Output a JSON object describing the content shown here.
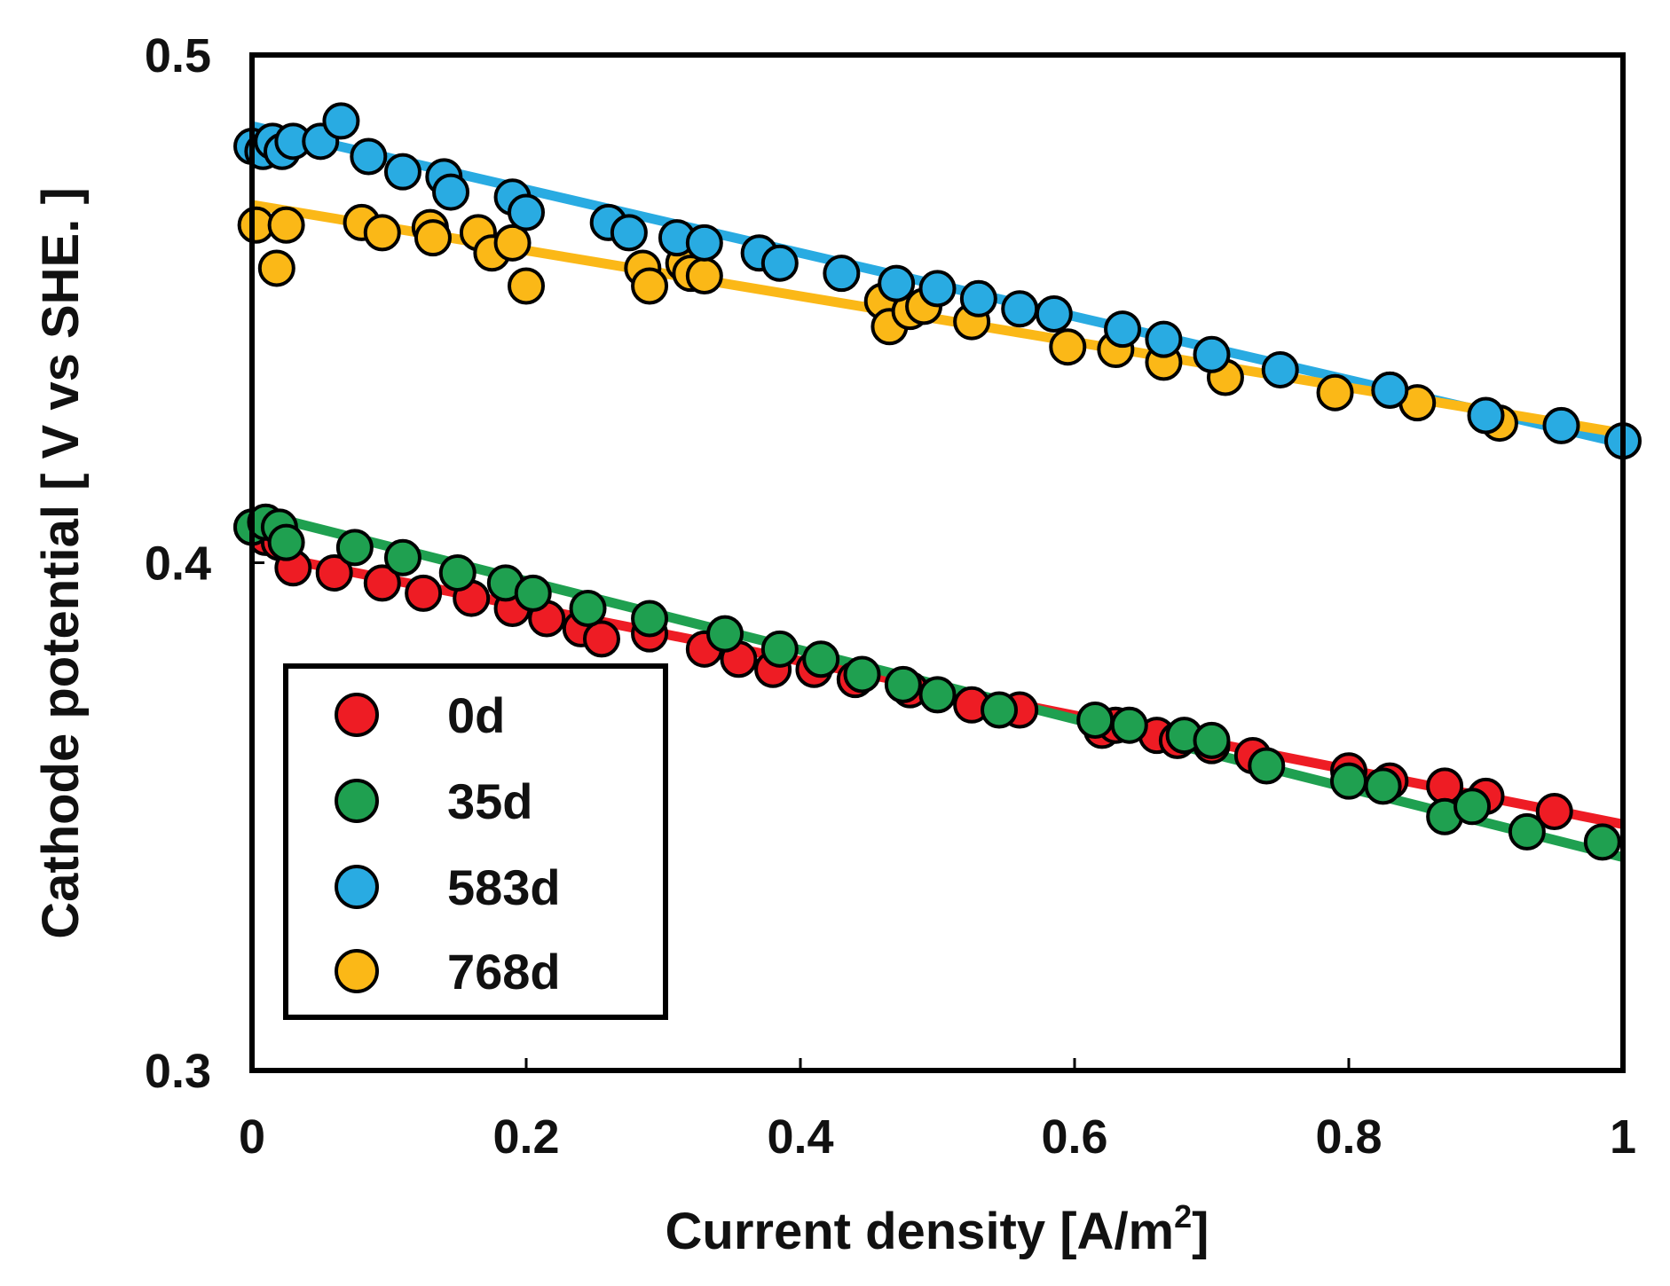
{
  "chart_data": {
    "type": "scatter",
    "xlabel": "Current density [A/m",
    "xlabel_superscript": "2",
    "xlabel_suffix": "]",
    "ylabel": "Cathode potential [ V vs SHE. ]",
    "xlim": [
      0,
      1
    ],
    "ylim": [
      0.3,
      0.5
    ],
    "x_ticks": [
      0,
      0.2,
      0.4,
      0.6,
      0.8,
      1
    ],
    "x_tick_labels": [
      "0",
      "0.2",
      "0.4",
      "0.6",
      "0.8",
      "1"
    ],
    "y_ticks": [
      0.3,
      0.4,
      0.5
    ],
    "y_tick_labels": [
      "0.3",
      "0.4",
      "0.5"
    ],
    "grid": false,
    "legend_position": "bottom-left",
    "series": [
      {
        "name": "0d",
        "color": "#ee1c24",
        "trend": [
          [
            0.02,
            0.401
          ],
          [
            1.0,
            0.3485
          ]
        ],
        "x": [
          0.0,
          0.01,
          0.02,
          0.03,
          0.06,
          0.095,
          0.125,
          0.16,
          0.19,
          0.215,
          0.24,
          0.255,
          0.29,
          0.33,
          0.355,
          0.38,
          0.41,
          0.44,
          0.48,
          0.525,
          0.56,
          0.62,
          0.63,
          0.66,
          0.675,
          0.7,
          0.73,
          0.8,
          0.83,
          0.87,
          0.9,
          0.95
        ],
        "y": [
          0.407,
          0.405,
          0.404,
          0.399,
          0.398,
          0.396,
          0.394,
          0.393,
          0.391,
          0.389,
          0.387,
          0.385,
          0.386,
          0.383,
          0.381,
          0.379,
          0.379,
          0.377,
          0.375,
          0.372,
          0.371,
          0.367,
          0.368,
          0.366,
          0.365,
          0.364,
          0.362,
          0.359,
          0.357,
          0.356,
          0.354,
          0.351
        ]
      },
      {
        "name": "35d",
        "color": "#1fa050",
        "trend": [
          [
            0.0,
            0.41
          ],
          [
            1.0,
            0.342
          ]
        ],
        "x": [
          0.0,
          0.01,
          0.02,
          0.025,
          0.075,
          0.11,
          0.15,
          0.185,
          0.205,
          0.245,
          0.29,
          0.345,
          0.385,
          0.415,
          0.445,
          0.475,
          0.5,
          0.545,
          0.615,
          0.64,
          0.68,
          0.7,
          0.74,
          0.8,
          0.825,
          0.87,
          0.89,
          0.93,
          0.985
        ],
        "y": [
          0.407,
          0.408,
          0.407,
          0.404,
          0.403,
          0.401,
          0.398,
          0.396,
          0.394,
          0.391,
          0.389,
          0.386,
          0.383,
          0.381,
          0.378,
          0.376,
          0.374,
          0.371,
          0.369,
          0.368,
          0.366,
          0.365,
          0.36,
          0.357,
          0.356,
          0.35,
          0.352,
          0.347,
          0.345
        ]
      },
      {
        "name": "583d",
        "color": "#29abe2",
        "trend": [
          [
            0.0,
            0.486
          ],
          [
            1.0,
            0.4235
          ]
        ],
        "x": [
          0.0,
          0.008,
          0.015,
          0.022,
          0.03,
          0.05,
          0.065,
          0.085,
          0.11,
          0.14,
          0.145,
          0.19,
          0.2,
          0.26,
          0.275,
          0.31,
          0.33,
          0.37,
          0.385,
          0.43,
          0.47,
          0.5,
          0.53,
          0.56,
          0.585,
          0.635,
          0.665,
          0.7,
          0.75,
          0.83,
          0.9,
          0.955,
          1.0
        ],
        "y": [
          0.482,
          0.481,
          0.483,
          0.481,
          0.483,
          0.483,
          0.487,
          0.48,
          0.477,
          0.476,
          0.473,
          0.472,
          0.469,
          0.467,
          0.465,
          0.464,
          0.463,
          0.461,
          0.459,
          0.457,
          0.455,
          0.454,
          0.452,
          0.45,
          0.449,
          0.446,
          0.444,
          0.441,
          0.438,
          0.434,
          0.429,
          0.427,
          0.424
        ]
      },
      {
        "name": "768d",
        "color": "#fbb817",
        "trend": [
          [
            0.0,
            0.4705
          ],
          [
            1.0,
            0.4255
          ]
        ],
        "x": [
          0.003,
          0.018,
          0.025,
          0.08,
          0.095,
          0.13,
          0.132,
          0.165,
          0.175,
          0.19,
          0.2,
          0.285,
          0.29,
          0.315,
          0.32,
          0.33,
          0.46,
          0.465,
          0.48,
          0.49,
          0.525,
          0.595,
          0.63,
          0.665,
          0.71,
          0.79,
          0.83,
          0.85,
          0.91
        ],
        "y": [
          0.4665,
          0.458,
          0.4665,
          0.467,
          0.465,
          0.466,
          0.464,
          0.465,
          0.461,
          0.463,
          0.4545,
          0.458,
          0.4545,
          0.459,
          0.457,
          0.4565,
          0.4515,
          0.4465,
          0.4495,
          0.4505,
          0.4475,
          0.4425,
          0.442,
          0.4395,
          0.4365,
          0.4335,
          0.434,
          0.4315,
          0.4275
        ]
      }
    ]
  }
}
